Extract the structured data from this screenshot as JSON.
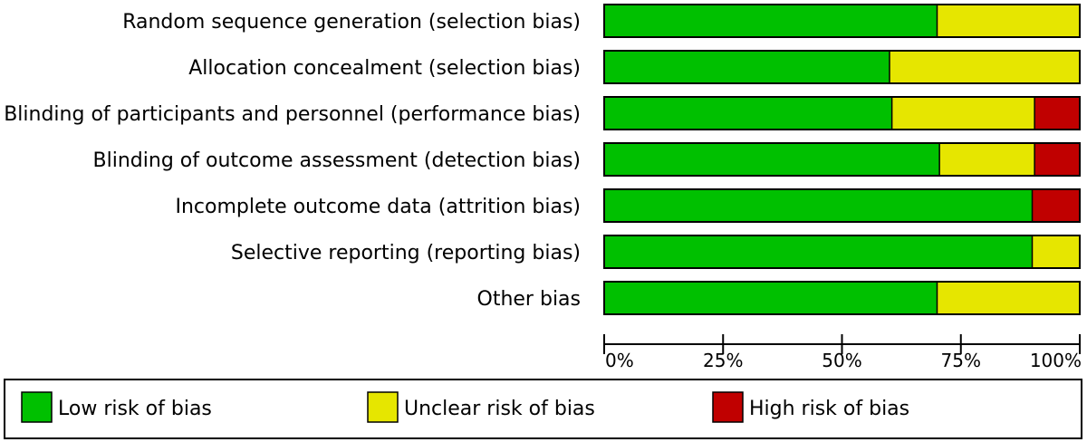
{
  "chart_data": {
    "type": "bar",
    "orientation": "horizontal",
    "stacked": true,
    "categories": [
      "Random sequence generation (selection bias)",
      "Allocation concealment (selection bias)",
      "Blinding of participants and personnel (performance bias)",
      "Blinding of outcome assessment (detection bias)",
      "Incomplete outcome data (attrition bias)",
      "Selective reporting (reporting bias)",
      "Other bias"
    ],
    "series": [
      {
        "name": "Low risk of bias",
        "color": "#00c000",
        "values": [
          70,
          60,
          60.5,
          70.5,
          90,
          90,
          70
        ]
      },
      {
        "name": "Unclear risk of bias",
        "color": "#e6e600",
        "values": [
          30,
          40,
          30,
          20,
          0,
          10,
          30
        ]
      },
      {
        "name": "High risk of bias",
        "color": "#c00000",
        "values": [
          0,
          0,
          9.5,
          9.5,
          10,
          0,
          0
        ]
      }
    ],
    "xlim": [
      0,
      100
    ],
    "xticks": [
      0,
      25,
      50,
      75,
      100
    ],
    "xtick_labels": [
      "0%",
      "25%",
      "50%",
      "75%",
      "100%"
    ],
    "grid": false,
    "legend_position": "bottom"
  }
}
